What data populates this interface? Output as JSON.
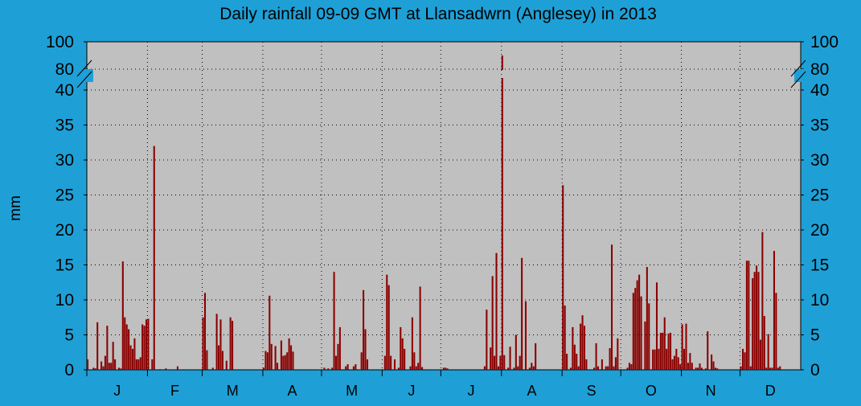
{
  "chart_data": {
    "type": "bar",
    "title": "Daily rainfall 09-09 GMT at Llansadwrn (Anglesey) in 2013",
    "ylabel": "mm",
    "xlabel": "",
    "y_ticks_lower": [
      0,
      5,
      10,
      15,
      20,
      25,
      30,
      35,
      40
    ],
    "y_ticks_upper": [
      80,
      100
    ],
    "ylim": [
      0,
      100
    ],
    "axis_break": [
      40,
      80
    ],
    "x_categories": [
      "J",
      "F",
      "M",
      "A",
      "M",
      "J",
      "J",
      "A",
      "S",
      "O",
      "N",
      "D"
    ],
    "x_range_days": [
      1,
      365
    ],
    "grid": true,
    "series": [
      {
        "color": "#8b0000",
        "points": [
          [
            1,
            1.5
          ],
          [
            4,
            0.3
          ],
          [
            5,
            0.2
          ],
          [
            6,
            6.8
          ],
          [
            8,
            1.2
          ],
          [
            9,
            0.5
          ],
          [
            10,
            2.0
          ],
          [
            11,
            6.3
          ],
          [
            12,
            1.0
          ],
          [
            13,
            1.0
          ],
          [
            14,
            4.0
          ],
          [
            15,
            1.5
          ],
          [
            17,
            0.3
          ],
          [
            18,
            0.2
          ],
          [
            19,
            15.5
          ],
          [
            20,
            7.5
          ],
          [
            21,
            6.5
          ],
          [
            22,
            5.8
          ],
          [
            23,
            3.5
          ],
          [
            24,
            3.0
          ],
          [
            25,
            4.5
          ],
          [
            26,
            1.5
          ],
          [
            27,
            1.5
          ],
          [
            28,
            1.8
          ],
          [
            29,
            6.5
          ],
          [
            30,
            6.3
          ],
          [
            31,
            7.2
          ],
          [
            32,
            7.3
          ],
          [
            34,
            1.5
          ],
          [
            35,
            32.0
          ],
          [
            38,
            0.1
          ],
          [
            41,
            0.2
          ],
          [
            47,
            0.5
          ],
          [
            60,
            7.5
          ],
          [
            61,
            11.0
          ],
          [
            62,
            2.8
          ],
          [
            65,
            0.3
          ],
          [
            67,
            8.0
          ],
          [
            68,
            3.5
          ],
          [
            69,
            7.2
          ],
          [
            70,
            2.7
          ],
          [
            72,
            1.3
          ],
          [
            74,
            7.5
          ],
          [
            75,
            7.0
          ],
          [
            91,
            0.3
          ],
          [
            92,
            2.7
          ],
          [
            93,
            2.5
          ],
          [
            94,
            10.6
          ],
          [
            95,
            3.7
          ],
          [
            97,
            3.4
          ],
          [
            98,
            1.0
          ],
          [
            100,
            4.2
          ],
          [
            101,
            2.0
          ],
          [
            102,
            2.1
          ],
          [
            103,
            2.5
          ],
          [
            104,
            4.5
          ],
          [
            105,
            3.5
          ],
          [
            106,
            2.6
          ],
          [
            122,
            0.3
          ],
          [
            124,
            0.2
          ],
          [
            126,
            0.3
          ],
          [
            127,
            14.0
          ],
          [
            128,
            2.0
          ],
          [
            129,
            3.7
          ],
          [
            130,
            6.1
          ],
          [
            133,
            0.5
          ],
          [
            134,
            0.8
          ],
          [
            137,
            0.5
          ],
          [
            138,
            0.8
          ],
          [
            141,
            2.5
          ],
          [
            142,
            11.4
          ],
          [
            143,
            5.8
          ],
          [
            144,
            1.5
          ],
          [
            153,
            2.0
          ],
          [
            154,
            13.6
          ],
          [
            155,
            12.1
          ],
          [
            156,
            2.0
          ],
          [
            158,
            1.5
          ],
          [
            160,
            0.3
          ],
          [
            161,
            6.1
          ],
          [
            162,
            4.5
          ],
          [
            163,
            3.0
          ],
          [
            166,
            0.5
          ],
          [
            167,
            7.5
          ],
          [
            168,
            2.5
          ],
          [
            169,
            0.5
          ],
          [
            170,
            1.0
          ],
          [
            171,
            11.9
          ],
          [
            172,
            0.4
          ],
          [
            183,
            0.3
          ],
          [
            184,
            0.3
          ],
          [
            185,
            0.2
          ],
          [
            204,
            0.5
          ],
          [
            205,
            8.6
          ],
          [
            207,
            3.2
          ],
          [
            208,
            13.4
          ],
          [
            209,
            2.0
          ],
          [
            210,
            16.7
          ],
          [
            211,
            0.5
          ],
          [
            212,
            2.0
          ],
          [
            213,
            90.0
          ],
          [
            214,
            2.1
          ],
          [
            216,
            0.3
          ],
          [
            217,
            3.3
          ],
          [
            219,
            0.3
          ],
          [
            220,
            5.0
          ],
          [
            221,
            0.5
          ],
          [
            222,
            2.0
          ],
          [
            223,
            16.0
          ],
          [
            225,
            9.8
          ],
          [
            227,
            0.3
          ],
          [
            228,
            1.0
          ],
          [
            229,
            0.5
          ],
          [
            230,
            3.8
          ],
          [
            244,
            26.4
          ],
          [
            245,
            9.2
          ],
          [
            246,
            2.3
          ],
          [
            248,
            0.3
          ],
          [
            249,
            6.1
          ],
          [
            250,
            3.6
          ],
          [
            251,
            2.3
          ],
          [
            252,
            0.5
          ],
          [
            253,
            6.6
          ],
          [
            254,
            7.8
          ],
          [
            255,
            6.3
          ],
          [
            256,
            1.5
          ],
          [
            260,
            0.3
          ],
          [
            261,
            3.8
          ],
          [
            262,
            0.5
          ],
          [
            264,
            1.5
          ],
          [
            266,
            0.5
          ],
          [
            267,
            0.5
          ],
          [
            268,
            3.1
          ],
          [
            269,
            17.9
          ],
          [
            270,
            0.5
          ],
          [
            271,
            1.8
          ],
          [
            272,
            4.5
          ],
          [
            277,
            0.3
          ],
          [
            278,
            1.0
          ],
          [
            279,
            0.8
          ],
          [
            280,
            11.0
          ],
          [
            281,
            11.7
          ],
          [
            282,
            12.8
          ],
          [
            283,
            13.6
          ],
          [
            284,
            10.5
          ],
          [
            286,
            6.9
          ],
          [
            287,
            14.7
          ],
          [
            288,
            9.5
          ],
          [
            290,
            2.9
          ],
          [
            291,
            2.9
          ],
          [
            292,
            12.5
          ],
          [
            293,
            3.0
          ],
          [
            294,
            5.3
          ],
          [
            295,
            5.3
          ],
          [
            296,
            7.5
          ],
          [
            297,
            3.0
          ],
          [
            298,
            5.2
          ],
          [
            299,
            5.3
          ],
          [
            300,
            1.5
          ],
          [
            301,
            2.0
          ],
          [
            302,
            3.0
          ],
          [
            303,
            1.8
          ],
          [
            304,
            0.8
          ],
          [
            305,
            6.5
          ],
          [
            306,
            3.0
          ],
          [
            307,
            6.6
          ],
          [
            308,
            1.0
          ],
          [
            309,
            2.4
          ],
          [
            310,
            1.0
          ],
          [
            312,
            0.3
          ],
          [
            313,
            0.3
          ],
          [
            314,
            0.9
          ],
          [
            315,
            0.3
          ],
          [
            317,
            0.2
          ],
          [
            318,
            5.5
          ],
          [
            320,
            2.2
          ],
          [
            321,
            1.2
          ],
          [
            322,
            0.3
          ],
          [
            323,
            0.2
          ],
          [
            335,
            0.5
          ],
          [
            336,
            3.0
          ],
          [
            337,
            2.5
          ],
          [
            338,
            15.6
          ],
          [
            339,
            15.6
          ],
          [
            340,
            0.5
          ],
          [
            341,
            13.1
          ],
          [
            342,
            14.0
          ],
          [
            343,
            14.9
          ],
          [
            344,
            14.0
          ],
          [
            345,
            4.3
          ],
          [
            346,
            19.7
          ],
          [
            347,
            7.7
          ],
          [
            348,
            0.3
          ],
          [
            349,
            5.1
          ],
          [
            350,
            0.3
          ],
          [
            351,
            0.3
          ],
          [
            352,
            17.0
          ],
          [
            353,
            11.0
          ],
          [
            354,
            0.3
          ],
          [
            355,
            0.5
          ]
        ]
      }
    ]
  }
}
